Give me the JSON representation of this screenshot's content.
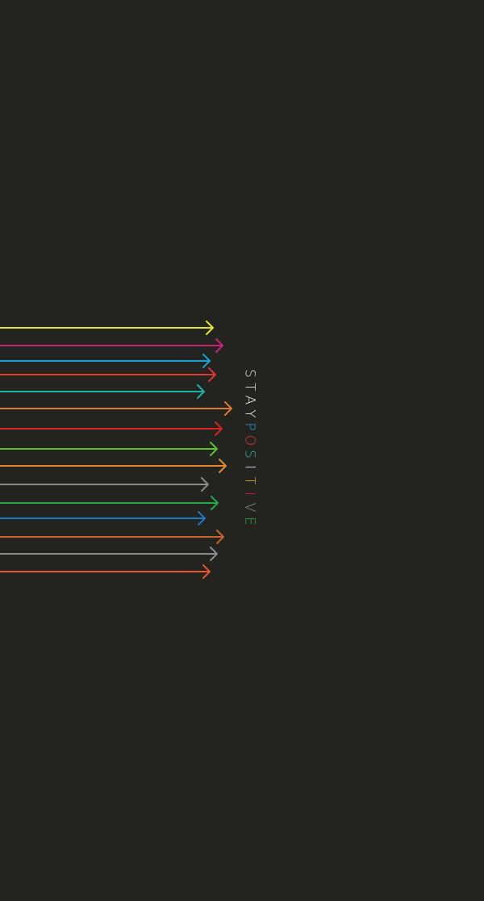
{
  "background_color": "#23231f",
  "slogan": {
    "text": "STAYPOSITIVE",
    "letters": [
      {
        "char": "S",
        "color": "#e8e8e8"
      },
      {
        "char": "T",
        "color": "#e8e8e8"
      },
      {
        "char": "A",
        "color": "#e8e8e8"
      },
      {
        "char": "Y",
        "color": "#e8e8e8"
      },
      {
        "char": "P",
        "color": "#1aa3d9"
      },
      {
        "char": "O",
        "color": "#e0362b"
      },
      {
        "char": "S",
        "color": "#2dbfa8"
      },
      {
        "char": "I",
        "color": "#e8e8e8"
      },
      {
        "char": "T",
        "color": "#f0a020"
      },
      {
        "char": "I",
        "color": "#d82424"
      },
      {
        "char": "V",
        "color": "#8a8a8a"
      },
      {
        "char": "E",
        "color": "#2db84a"
      }
    ]
  },
  "arrows": [
    {
      "color": "#e8e62c"
    },
    {
      "color": "#c8237c"
    },
    {
      "color": "#1aa3d9"
    },
    {
      "color": "#e0362b"
    },
    {
      "color": "#19b3a3"
    },
    {
      "color": "#e0782b"
    },
    {
      "color": "#d82424"
    },
    {
      "color": "#5cc02a"
    },
    {
      "color": "#e8862b"
    },
    {
      "color": "#8a8a8a"
    },
    {
      "color": "#25a84a"
    },
    {
      "color": "#1a78c8"
    },
    {
      "color": "#c8642b"
    },
    {
      "color": "#8a8a8a"
    },
    {
      "color": "#e8542b"
    }
  ]
}
